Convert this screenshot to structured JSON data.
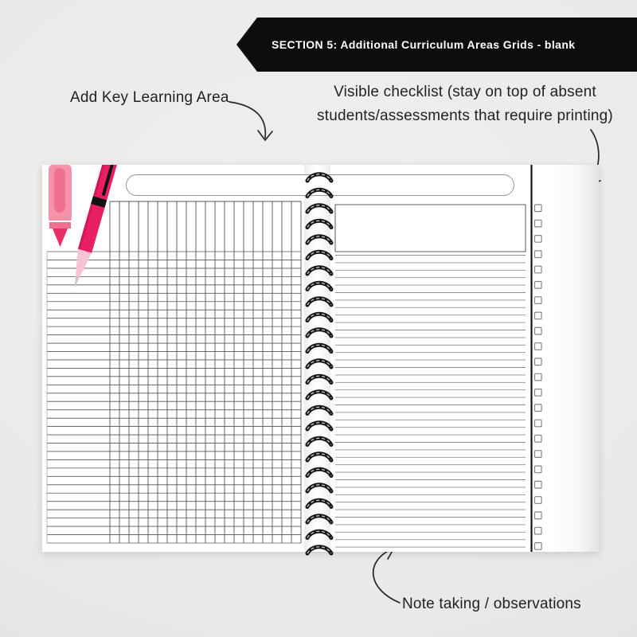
{
  "banner": {
    "label": "SECTION 5: Additional Curriculum Areas Grids - blank",
    "bg": "#0d0d0d",
    "fg": "#ffffff"
  },
  "annotations": {
    "kla": {
      "text": "Add Key Learning Area"
    },
    "checklist": {
      "line1": "Visible checklist (stay on top of absent",
      "line2": "students/assessments that require printing)"
    },
    "notes": {
      "text": "Note taking / observations"
    }
  },
  "planner": {
    "left_page": {
      "grid": {
        "header_columns": 20,
        "rows": 35
      },
      "decor": [
        "pink-crayon-illustration",
        "pink-pen-illustration"
      ]
    },
    "right_page": {
      "ruled_line_count": 40,
      "checkbox_count": 23
    },
    "spiral": {
      "loop_count": 25
    },
    "colors": {
      "crayon_body": "#f493a8",
      "crayon_stripe": "#ee7191",
      "crayon_tip": "#ea2c67",
      "pen_body": "#e81f60",
      "pen_dark": "#d61852",
      "pen_tip": "#f6c3d2",
      "pen_nib": "#c9c9c9",
      "grid_line": "#565656",
      "ruled_line": "#8e8e8e",
      "divider": "#161616",
      "checkbox_border": "#858585",
      "arrow": "#262626"
    }
  }
}
